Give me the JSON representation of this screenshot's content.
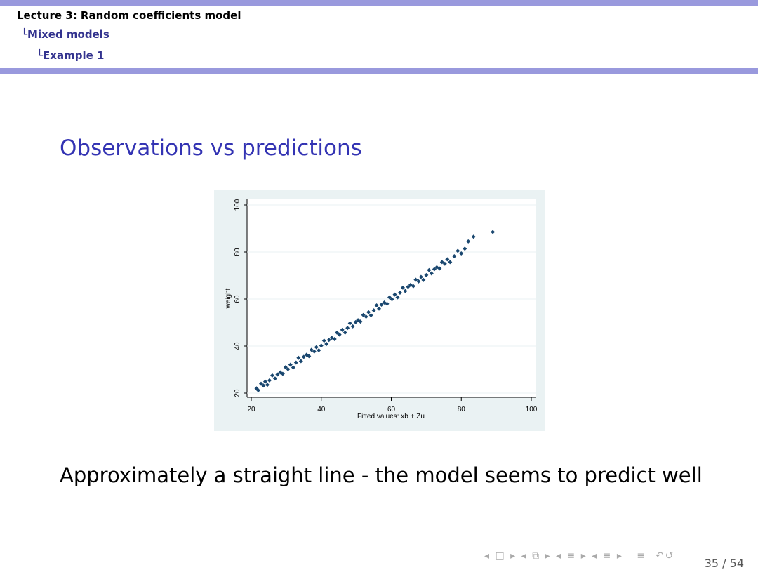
{
  "header": {
    "lines": [
      "Lecture 3: Random coefficients model",
      "Mixed models",
      "Example 1"
    ]
  },
  "frame_title": "Observations vs predictions",
  "chart_data": {
    "type": "scatter",
    "xlabel": "Fitted values: xb + Zu",
    "ylabel": "weight",
    "xlim": [
      20,
      100
    ],
    "ylim": [
      20,
      100
    ],
    "xticks": [
      20,
      40,
      60,
      80,
      100
    ],
    "yticks": [
      20,
      40,
      60,
      80,
      100
    ],
    "grid": true,
    "series": [
      {
        "color": "#1a476f",
        "x": [
          21.5,
          22,
          22.8,
          23.5,
          24,
          24.6,
          25.2,
          26,
          26.8,
          27.5,
          28.3,
          29,
          29.8,
          30.5,
          31.2,
          32,
          32.8,
          33.5,
          34.2,
          35,
          35.8,
          36.5,
          37.2,
          38,
          38.6,
          39.3,
          40,
          40.8,
          41.5,
          42.2,
          43,
          43.8,
          44.5,
          45.2,
          46,
          46.8,
          47.5,
          48.2,
          49,
          49.8,
          50.5,
          51.2,
          52,
          52.8,
          53.5,
          54.2,
          55,
          55.8,
          56.5,
          57.2,
          58,
          58.8,
          59.5,
          60.2,
          61,
          61.8,
          62.5,
          63.3,
          64,
          64.8,
          65.5,
          66.3,
          67,
          67.8,
          68.5,
          69.2,
          70,
          70.8,
          71.5,
          72.3,
          73,
          73.8,
          74.5,
          75.3,
          76,
          76.8,
          78,
          79,
          80,
          81,
          82,
          83.5,
          89
        ],
        "values": [
          22,
          21.2,
          24,
          23.2,
          24.9,
          23.5,
          25.4,
          27.5,
          26.2,
          27.9,
          28.8,
          28.2,
          31,
          30.2,
          32.1,
          30.9,
          33,
          35,
          33.6,
          35.4,
          36.3,
          35.7,
          38.4,
          37.7,
          39.5,
          38.2,
          40.2,
          42.3,
          40.9,
          42.6,
          43.5,
          43,
          45.7,
          44.9,
          46.9,
          45.7,
          47.7,
          49.7,
          48.4,
          50.2,
          51,
          50.4,
          53.2,
          52.5,
          54.4,
          53.1,
          55.2,
          57.3,
          55.9,
          57.6,
          58.5,
          58,
          60.7,
          59.9,
          61.9,
          60.7,
          62.7,
          64.8,
          63.4,
          65.2,
          66,
          65.5,
          68.2,
          67.5,
          69.4,
          68.1,
          70.2,
          72.3,
          70.9,
          72.7,
          73.5,
          73,
          75.7,
          75,
          76.9,
          75.7,
          78.2,
          80.5,
          79.4,
          81.4,
          84.5,
          86.5,
          88.5
        ]
      }
    ]
  },
  "body_text": "Approximately a straight line - the model seems to predict well",
  "page_number": "35 / 54"
}
